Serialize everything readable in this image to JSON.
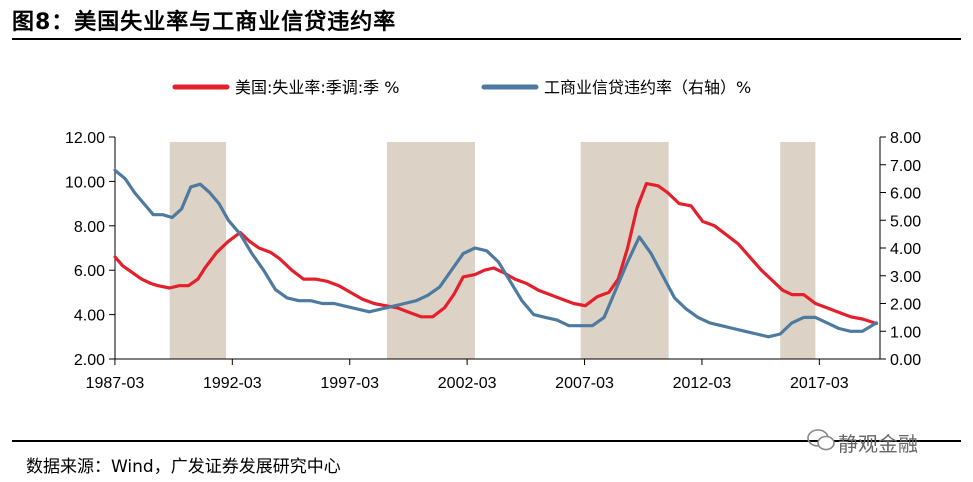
{
  "header": {
    "title": "图8：美国失业率与工商业信贷违约率"
  },
  "footer": {
    "source": "数据来源：Wind，广发证券发展研究中心",
    "watermark": "静观金融"
  },
  "chart_data": {
    "type": "line",
    "legend_position": "top",
    "x_ticks": [
      "1987-03",
      "1992-03",
      "1997-03",
      "2002-03",
      "2007-03",
      "2012-03",
      "2017-03"
    ],
    "x_range": [
      1987.17,
      2019.75
    ],
    "y_left": {
      "ticks": [
        "12.00",
        "10.00",
        "8.00",
        "6.00",
        "4.00",
        "2.00"
      ],
      "ylim": [
        2,
        12
      ]
    },
    "y_right": {
      "ticks": [
        "8.00",
        "7.00",
        "6.00",
        "5.00",
        "4.00",
        "3.00",
        "2.00",
        "1.00",
        "0.00"
      ],
      "ylim": [
        0,
        8
      ]
    },
    "shaded_periods": [
      [
        1989.5,
        1991.9
      ],
      [
        1998.75,
        2002.5
      ],
      [
        2007.0,
        2010.75
      ],
      [
        2015.5,
        2017.0
      ]
    ],
    "series": [
      {
        "name": "美国:失业率:季调:季 %",
        "axis": "left",
        "color": "#e3202c",
        "points": [
          [
            1987.17,
            6.6
          ],
          [
            1987.5,
            6.2
          ],
          [
            1987.9,
            5.9
          ],
          [
            1988.3,
            5.6
          ],
          [
            1988.7,
            5.4
          ],
          [
            1989.0,
            5.3
          ],
          [
            1989.5,
            5.2
          ],
          [
            1989.9,
            5.3
          ],
          [
            1990.3,
            5.3
          ],
          [
            1990.7,
            5.6
          ],
          [
            1991.0,
            6.1
          ],
          [
            1991.5,
            6.8
          ],
          [
            1992.0,
            7.3
          ],
          [
            1992.5,
            7.7
          ],
          [
            1992.9,
            7.3
          ],
          [
            1993.3,
            7.0
          ],
          [
            1993.8,
            6.8
          ],
          [
            1994.2,
            6.5
          ],
          [
            1994.7,
            6.0
          ],
          [
            1995.2,
            5.6
          ],
          [
            1995.7,
            5.6
          ],
          [
            1996.2,
            5.5
          ],
          [
            1996.7,
            5.3
          ],
          [
            1997.2,
            5.0
          ],
          [
            1997.7,
            4.7
          ],
          [
            1998.2,
            4.5
          ],
          [
            1998.7,
            4.4
          ],
          [
            1999.2,
            4.3
          ],
          [
            1999.7,
            4.1
          ],
          [
            2000.2,
            3.9
          ],
          [
            2000.7,
            3.9
          ],
          [
            2001.2,
            4.3
          ],
          [
            2001.6,
            4.9
          ],
          [
            2002.0,
            5.7
          ],
          [
            2002.5,
            5.8
          ],
          [
            2002.9,
            6.0
          ],
          [
            2003.3,
            6.1
          ],
          [
            2003.7,
            5.9
          ],
          [
            2004.2,
            5.6
          ],
          [
            2004.7,
            5.4
          ],
          [
            2005.2,
            5.1
          ],
          [
            2005.7,
            4.9
          ],
          [
            2006.2,
            4.7
          ],
          [
            2006.7,
            4.5
          ],
          [
            2007.2,
            4.4
          ],
          [
            2007.7,
            4.8
          ],
          [
            2008.2,
            5.0
          ],
          [
            2008.6,
            5.6
          ],
          [
            2009.0,
            7.0
          ],
          [
            2009.4,
            8.8
          ],
          [
            2009.8,
            9.9
          ],
          [
            2010.3,
            9.8
          ],
          [
            2010.7,
            9.5
          ],
          [
            2011.2,
            9.0
          ],
          [
            2011.7,
            8.9
          ],
          [
            2012.2,
            8.2
          ],
          [
            2012.7,
            8.0
          ],
          [
            2013.2,
            7.6
          ],
          [
            2013.7,
            7.2
          ],
          [
            2014.2,
            6.6
          ],
          [
            2014.7,
            6.0
          ],
          [
            2015.2,
            5.5
          ],
          [
            2015.6,
            5.1
          ],
          [
            2016.0,
            4.9
          ],
          [
            2016.5,
            4.9
          ],
          [
            2017.0,
            4.5
          ],
          [
            2017.5,
            4.3
          ],
          [
            2018.0,
            4.1
          ],
          [
            2018.5,
            3.9
          ],
          [
            2019.0,
            3.8
          ],
          [
            2019.6,
            3.6
          ]
        ]
      },
      {
        "name": "工商业信贷违约率（右轴）%",
        "axis": "right",
        "color": "#4f7aa0",
        "points": [
          [
            1987.17,
            6.8
          ],
          [
            1987.6,
            6.5
          ],
          [
            1988.0,
            6.0
          ],
          [
            1988.4,
            5.6
          ],
          [
            1988.8,
            5.2
          ],
          [
            1989.2,
            5.2
          ],
          [
            1989.6,
            5.1
          ],
          [
            1990.0,
            5.4
          ],
          [
            1990.4,
            6.2
          ],
          [
            1990.8,
            6.3
          ],
          [
            1991.2,
            6.0
          ],
          [
            1991.6,
            5.6
          ],
          [
            1992.0,
            5.0
          ],
          [
            1992.5,
            4.5
          ],
          [
            1993.0,
            3.8
          ],
          [
            1993.5,
            3.2
          ],
          [
            1994.0,
            2.5
          ],
          [
            1994.5,
            2.2
          ],
          [
            1995.0,
            2.1
          ],
          [
            1995.5,
            2.1
          ],
          [
            1996.0,
            2.0
          ],
          [
            1996.5,
            2.0
          ],
          [
            1997.0,
            1.9
          ],
          [
            1997.5,
            1.8
          ],
          [
            1998.0,
            1.7
          ],
          [
            1998.5,
            1.8
          ],
          [
            1999.0,
            1.9
          ],
          [
            1999.5,
            2.0
          ],
          [
            2000.0,
            2.1
          ],
          [
            2000.5,
            2.3
          ],
          [
            2001.0,
            2.6
          ],
          [
            2001.5,
            3.2
          ],
          [
            2002.0,
            3.8
          ],
          [
            2002.5,
            4.0
          ],
          [
            2003.0,
            3.9
          ],
          [
            2003.5,
            3.5
          ],
          [
            2004.0,
            2.8
          ],
          [
            2004.5,
            2.1
          ],
          [
            2005.0,
            1.6
          ],
          [
            2005.5,
            1.5
          ],
          [
            2006.0,
            1.4
          ],
          [
            2006.5,
            1.2
          ],
          [
            2007.0,
            1.2
          ],
          [
            2007.5,
            1.2
          ],
          [
            2008.0,
            1.5
          ],
          [
            2008.5,
            2.5
          ],
          [
            2009.0,
            3.5
          ],
          [
            2009.5,
            4.4
          ],
          [
            2010.0,
            3.8
          ],
          [
            2010.5,
            3.0
          ],
          [
            2011.0,
            2.2
          ],
          [
            2011.5,
            1.8
          ],
          [
            2012.0,
            1.5
          ],
          [
            2012.5,
            1.3
          ],
          [
            2013.0,
            1.2
          ],
          [
            2013.5,
            1.1
          ],
          [
            2014.0,
            1.0
          ],
          [
            2014.5,
            0.9
          ],
          [
            2015.0,
            0.8
          ],
          [
            2015.5,
            0.9
          ],
          [
            2016.0,
            1.3
          ],
          [
            2016.5,
            1.5
          ],
          [
            2017.0,
            1.5
          ],
          [
            2017.5,
            1.3
          ],
          [
            2018.0,
            1.1
          ],
          [
            2018.5,
            1.0
          ],
          [
            2019.0,
            1.0
          ],
          [
            2019.6,
            1.3
          ]
        ]
      }
    ]
  }
}
